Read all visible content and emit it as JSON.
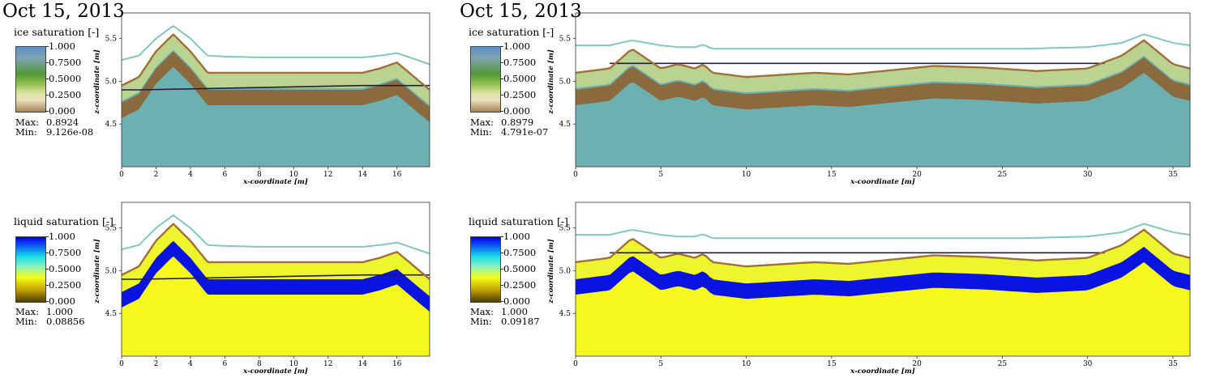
{
  "panels": [
    {
      "id": "p-ice-left",
      "kind": "ice",
      "domain": "short",
      "date": "Oct 15, 2013",
      "field_label": "ice saturation [-]",
      "colorbar_ticks": [
        "1.000",
        "0.7500",
        "0.5000",
        "0.2500",
        "0.000"
      ],
      "max_label": "Max:",
      "max_value": "0.8924",
      "min_label": "Min:",
      "min_value": "9.126e-08",
      "x_ticks": [
        "0",
        "2",
        "4",
        "6",
        "8",
        "10",
        "12",
        "14",
        "16"
      ],
      "y_ticks": [
        "5.5",
        "5.0",
        "4.5"
      ],
      "xlabel": "x-coordinate [m]",
      "ylabel": "z-coordinate [m]"
    },
    {
      "id": "p-ice-right",
      "kind": "ice",
      "domain": "long",
      "date": "Oct 15, 2013",
      "field_label": "ice saturation [-]",
      "colorbar_ticks": [
        "1.000",
        "0.7500",
        "0.5000",
        "0.2500",
        "0.000"
      ],
      "max_label": "Max:",
      "max_value": "0.8979",
      "min_label": "Min:",
      "min_value": "4.791e-07",
      "x_ticks": [
        "0",
        "5",
        "10",
        "15",
        "20",
        "25",
        "30",
        "35"
      ],
      "y_ticks": [
        "5.5",
        "5.0",
        "4.5"
      ],
      "xlabel": "x-coordinate [m]",
      "ylabel": "z-coordinate [m]"
    },
    {
      "id": "p-liq-left",
      "kind": "liquid",
      "domain": "short",
      "date": "",
      "field_label": "liquid saturation [-]",
      "colorbar_ticks": [
        "1.000",
        "0.7500",
        "0.5000",
        "0.2500",
        "0.000"
      ],
      "max_label": "Max:",
      "max_value": "1.000",
      "min_label": "Min:",
      "min_value": "0.08856",
      "x_ticks": [
        "0",
        "2",
        "4",
        "6",
        "8",
        "10",
        "12",
        "14",
        "16"
      ],
      "y_ticks": [
        "5.5",
        "5.0",
        "4.5"
      ],
      "xlabel": "x-coordinate [m]",
      "ylabel": "z-coordinate [m]"
    },
    {
      "id": "p-liq-right",
      "kind": "liquid",
      "domain": "long",
      "date": "",
      "field_label": "liquid saturation [-]",
      "colorbar_ticks": [
        "1.000",
        "0.7500",
        "0.5000",
        "0.2500",
        "0.000"
      ],
      "max_label": "Max:",
      "max_value": "1.000",
      "min_label": "Min:",
      "min_value": "0.09187",
      "x_ticks": [
        "0",
        "5",
        "10",
        "15",
        "20",
        "25",
        "30",
        "35"
      ],
      "y_ticks": [
        "5.5",
        "5.0",
        "4.5"
      ],
      "xlabel": "x-coordinate [m]",
      "ylabel": "z-coordinate [m]"
    }
  ],
  "chart_data": [
    {
      "type": "heatmap",
      "field": "ice saturation [-]",
      "xlabel": "x-coordinate [m]",
      "ylabel": "z-coordinate [m]",
      "xlim": [
        0,
        17.9
      ],
      "ylim": [
        4.0,
        5.8
      ],
      "colorbar_range": [
        0.0,
        1.0
      ],
      "max": 0.8924,
      "min": 9.126e-08,
      "surface_profile": {
        "x": [
          0,
          1,
          2,
          3,
          4,
          5,
          6,
          8,
          10,
          12,
          14,
          15,
          16,
          17.9
        ],
        "z": [
          4.95,
          5.05,
          5.35,
          5.55,
          5.35,
          5.1,
          5.1,
          5.1,
          5.1,
          5.1,
          5.1,
          5.15,
          5.22,
          4.9
        ]
      },
      "snow_surface": {
        "x": [
          0,
          1,
          2,
          3,
          4,
          5,
          6,
          8,
          10,
          12,
          14,
          15,
          16,
          17.9
        ],
        "z": [
          5.25,
          5.3,
          5.5,
          5.65,
          5.5,
          5.3,
          5.29,
          5.28,
          5.28,
          5.28,
          5.28,
          5.3,
          5.33,
          5.2
        ]
      },
      "water_table": {
        "x": [
          0,
          1,
          14,
          16,
          17.9
        ],
        "z": [
          4.9,
          4.9,
          4.95,
          4.95,
          4.95
        ]
      }
    },
    {
      "type": "heatmap",
      "field": "ice saturation [-]",
      "xlabel": "x-coordinate [m]",
      "ylabel": "z-coordinate [m]",
      "xlim": [
        0,
        36
      ],
      "ylim": [
        4.0,
        5.8
      ],
      "colorbar_range": [
        0.0,
        1.0
      ],
      "max": 0.8979,
      "min": 4.791e-07,
      "surface_profile": {
        "x": [
          0,
          2,
          3.3,
          5,
          6,
          7,
          7.5,
          8,
          10,
          14,
          16,
          18,
          21,
          24,
          27,
          30,
          32,
          33.3,
          35,
          36
        ],
        "z": [
          5.1,
          5.15,
          5.38,
          5.15,
          5.2,
          5.15,
          5.2,
          5.1,
          5.05,
          5.1,
          5.08,
          5.12,
          5.18,
          5.16,
          5.12,
          5.15,
          5.3,
          5.48,
          5.2,
          5.15
        ]
      },
      "snow_surface": {
        "x": [
          0,
          2,
          3.3,
          5,
          6,
          7,
          7.5,
          8,
          10,
          14,
          18,
          22,
          26,
          30,
          32,
          33.3,
          35,
          36
        ],
        "z": [
          5.42,
          5.42,
          5.48,
          5.42,
          5.4,
          5.4,
          5.43,
          5.38,
          5.38,
          5.38,
          5.38,
          5.38,
          5.38,
          5.4,
          5.45,
          5.55,
          5.45,
          5.42
        ]
      },
      "water_table": {
        "x": [
          2,
          31
        ],
        "z": [
          5.21,
          5.21
        ]
      }
    },
    {
      "type": "heatmap",
      "field": "liquid saturation [-]",
      "xlabel": "x-coordinate [m]",
      "ylabel": "z-coordinate [m]",
      "xlim": [
        0,
        17.9
      ],
      "ylim": [
        4.0,
        5.8
      ],
      "colorbar_range": [
        0.0,
        1.0
      ],
      "max": 1.0,
      "min": 0.08856,
      "surface_profile": {
        "x": [
          0,
          1,
          2,
          3,
          4,
          5,
          6,
          8,
          10,
          12,
          14,
          15,
          16,
          17.9
        ],
        "z": [
          4.95,
          5.05,
          5.35,
          5.55,
          5.35,
          5.1,
          5.1,
          5.1,
          5.1,
          5.1,
          5.1,
          5.15,
          5.22,
          4.9
        ]
      },
      "snow_surface": {
        "x": [
          0,
          1,
          2,
          3,
          4,
          5,
          6,
          8,
          10,
          12,
          14,
          15,
          16,
          17.9
        ],
        "z": [
          5.25,
          5.3,
          5.5,
          5.65,
          5.5,
          5.3,
          5.29,
          5.28,
          5.28,
          5.28,
          5.28,
          5.3,
          5.33,
          5.2
        ]
      },
      "water_table": {
        "x": [
          0,
          1,
          14,
          16,
          17.9
        ],
        "z": [
          4.9,
          4.9,
          4.95,
          4.95,
          4.95
        ]
      }
    },
    {
      "type": "heatmap",
      "field": "liquid saturation [-]",
      "xlabel": "x-coordinate [m]",
      "ylabel": "z-coordinate [m]",
      "xlim": [
        0,
        36
      ],
      "ylim": [
        4.0,
        5.8
      ],
      "colorbar_range": [
        0.0,
        1.0
      ],
      "max": 1.0,
      "min": 0.09187,
      "surface_profile": {
        "x": [
          0,
          2,
          3.3,
          5,
          6,
          7,
          7.5,
          8,
          10,
          14,
          16,
          18,
          21,
          24,
          27,
          30,
          32,
          33.3,
          35,
          36
        ],
        "z": [
          5.1,
          5.15,
          5.38,
          5.15,
          5.2,
          5.15,
          5.2,
          5.1,
          5.05,
          5.1,
          5.08,
          5.12,
          5.18,
          5.16,
          5.12,
          5.15,
          5.3,
          5.48,
          5.2,
          5.15
        ]
      },
      "snow_surface": {
        "x": [
          0,
          2,
          3.3,
          5,
          6,
          7,
          7.5,
          8,
          10,
          14,
          18,
          22,
          26,
          30,
          32,
          33.3,
          35,
          36
        ],
        "z": [
          5.42,
          5.42,
          5.48,
          5.42,
          5.4,
          5.4,
          5.43,
          5.38,
          5.38,
          5.38,
          5.38,
          5.38,
          5.38,
          5.4,
          5.45,
          5.55,
          5.45,
          5.42
        ]
      },
      "water_table": {
        "x": [
          2,
          31
        ],
        "z": [
          5.21,
          5.21
        ]
      }
    }
  ],
  "colors": {
    "ice_colormap": [
      "#5e8fc6",
      "#7fa3b0",
      "#4f9a35",
      "#8bb84a",
      "#dfe6a3",
      "#eae0bf",
      "#a98554"
    ],
    "liquid_colormap": [
      "#0000e6",
      "#17dde8",
      "#8bf0c0",
      "#f4ff1c",
      "#c6a900",
      "#4e3b00"
    ],
    "ice_fill": "#6cb0b2",
    "ice_band": "#8b6a3e",
    "liquid_fill": "#f5f71e",
    "liquid_band": "#0a14e0",
    "snow_line": "#7fc9bd",
    "water_table_line": "#241c3a",
    "surface_line": "#9d7138"
  }
}
